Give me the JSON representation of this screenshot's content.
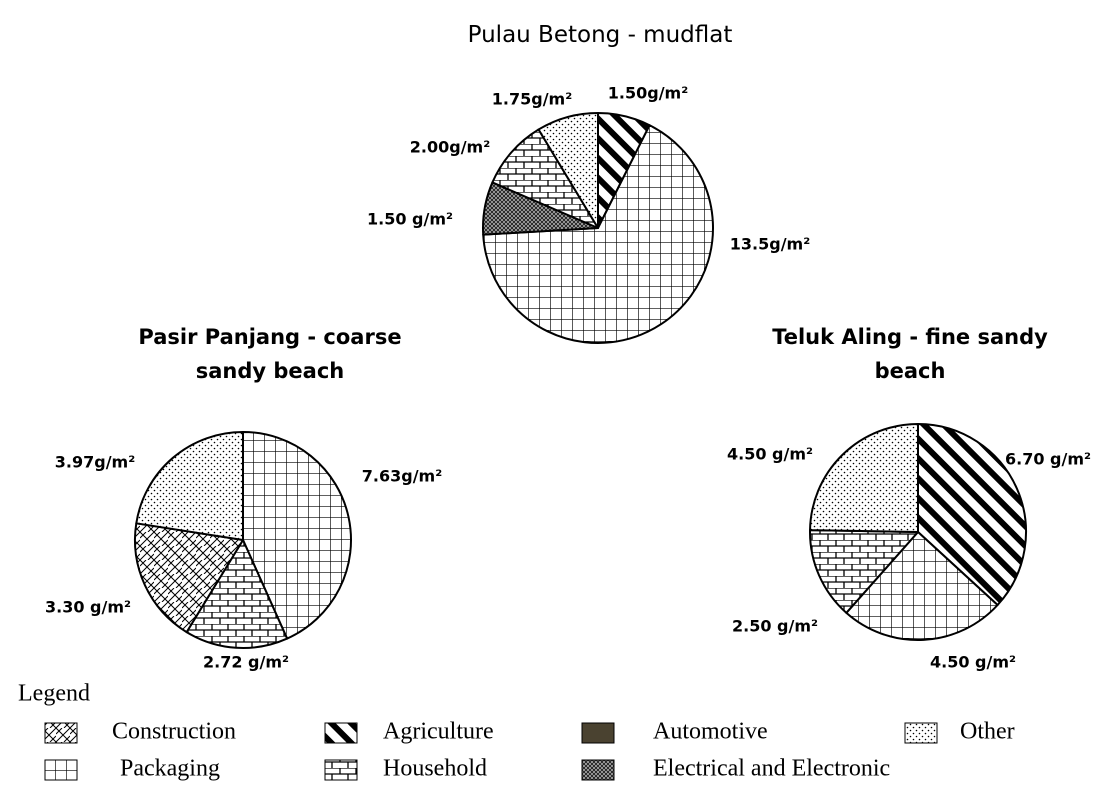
{
  "chart_data": [
    {
      "type": "pie",
      "title": "Pulau Betong - mudflat",
      "values": [
        1.5,
        13.5,
        1.5,
        2.0,
        1.75
      ],
      "value_labels": [
        "1.50g/m²",
        "13.5g/m²",
        "1.50 g/m²",
        "2.00g/m²",
        "1.75g/m²"
      ],
      "patterns": [
        "stripes",
        "grid",
        "dense-hatch",
        "brick",
        "dots"
      ]
    },
    {
      "type": "pie",
      "title": "Pasir Panjang - coarse sandy beach",
      "values": [
        7.63,
        2.72,
        3.3,
        3.97
      ],
      "value_labels": [
        "7.63g/m²",
        "2.72 g/m²",
        "3.30 g/m²",
        "3.97g/m²"
      ],
      "patterns": [
        "grid",
        "brick",
        "crosshatch",
        "dots"
      ]
    },
    {
      "type": "pie",
      "title": "Teluk Aling - fine sandy beach",
      "values": [
        6.7,
        4.5,
        2.5,
        4.5
      ],
      "value_labels": [
        "6.70 g/m²",
        "4.50 g/m²",
        "2.50 g/m²",
        "4.50 g/m²"
      ],
      "patterns": [
        "stripes",
        "grid",
        "brick",
        "dots"
      ]
    }
  ],
  "legend": {
    "title": "Legend",
    "items": [
      {
        "name": "Construction",
        "pattern": "crosshatch"
      },
      {
        "name": "Agriculture",
        "pattern": "stripes"
      },
      {
        "name": "Automotive",
        "pattern": "solid"
      },
      {
        "name": "Other",
        "pattern": "dots"
      },
      {
        "name": "Packaging",
        "pattern": "grid"
      },
      {
        "name": "Household",
        "pattern": "brick"
      },
      {
        "name": "Electrical and Electronic",
        "pattern": "dense-hatch"
      }
    ]
  }
}
